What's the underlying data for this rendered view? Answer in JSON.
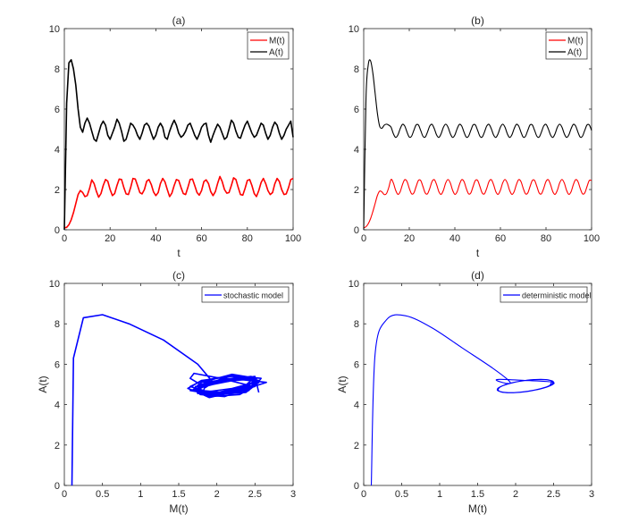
{
  "chart_data": [
    {
      "id": "a",
      "type": "line",
      "title": "(a)",
      "xlabel": "t",
      "ylabel": "",
      "xlim": [
        0,
        100
      ],
      "ylim": [
        0,
        10
      ],
      "xticks": [
        0,
        20,
        40,
        60,
        80,
        100
      ],
      "yticks": [
        0,
        2,
        4,
        6,
        8,
        10
      ],
      "legend": "top-right",
      "x_step": 1,
      "series": [
        {
          "name": "M(t)",
          "color": "#ff0000",
          "values": [
            0.1,
            0.12,
            0.25,
            0.5,
            0.85,
            1.3,
            1.75,
            1.95,
            1.85,
            1.65,
            1.7,
            2.05,
            2.48,
            2.3,
            1.92,
            1.62,
            1.8,
            2.2,
            2.5,
            2.42,
            2.0,
            1.7,
            1.8,
            2.2,
            2.52,
            2.5,
            2.1,
            1.78,
            1.75,
            2.1,
            2.55,
            2.52,
            2.2,
            1.85,
            1.78,
            2.0,
            2.42,
            2.5,
            2.25,
            1.88,
            1.7,
            1.85,
            2.3,
            2.55,
            2.38,
            2.0,
            1.65,
            1.82,
            2.2,
            2.5,
            2.45,
            2.1,
            1.8,
            1.75,
            2.1,
            2.5,
            2.52,
            2.2,
            1.85,
            1.72,
            1.95,
            2.4,
            2.48,
            2.3,
            1.9,
            1.7,
            1.9,
            2.3,
            2.65,
            2.4,
            2.0,
            1.82,
            1.85,
            2.2,
            2.58,
            2.5,
            2.1,
            1.75,
            1.72,
            2.05,
            2.45,
            2.5,
            2.2,
            1.8,
            1.65,
            1.95,
            2.35,
            2.55,
            2.3,
            1.95,
            1.75,
            1.85,
            2.28,
            2.55,
            2.4,
            2.0,
            1.75,
            1.78,
            2.1,
            2.5,
            2.55
          ]
        },
        {
          "name": "A(t)",
          "color": "#000000",
          "values": [
            0,
            6.3,
            8.3,
            8.45,
            8.0,
            7.2,
            6.0,
            5.1,
            4.85,
            5.3,
            5.55,
            5.3,
            4.9,
            4.5,
            4.4,
            4.8,
            5.2,
            5.4,
            5.2,
            4.7,
            4.5,
            4.8,
            5.1,
            5.5,
            5.3,
            4.9,
            4.4,
            4.5,
            4.9,
            5.3,
            5.2,
            5.0,
            4.7,
            4.5,
            4.8,
            5.2,
            5.3,
            5.15,
            4.8,
            4.5,
            4.7,
            5.1,
            5.3,
            5.1,
            4.6,
            4.5,
            4.9,
            5.2,
            5.45,
            5.2,
            4.8,
            4.6,
            4.7,
            4.9,
            5.2,
            5.3,
            5.0,
            4.7,
            4.5,
            4.75,
            5.1,
            5.25,
            5.3,
            4.7,
            4.35,
            4.7,
            5.0,
            5.25,
            5.1,
            4.8,
            4.5,
            4.6,
            5.0,
            5.45,
            5.3,
            4.9,
            4.6,
            4.55,
            4.9,
            5.2,
            5.4,
            5.1,
            4.8,
            4.6,
            4.7,
            5.0,
            5.3,
            5.2,
            4.8,
            4.5,
            4.7,
            5.1,
            5.35,
            5.2,
            4.8,
            4.5,
            4.7,
            5.0,
            5.2,
            5.4,
            4.6
          ]
        }
      ]
    },
    {
      "id": "b",
      "type": "line",
      "title": "(b)",
      "xlabel": "t",
      "ylabel": "",
      "xlim": [
        0,
        100
      ],
      "ylim": [
        0,
        10
      ],
      "xticks": [
        0,
        20,
        40,
        60,
        80,
        100
      ],
      "yticks": [
        0,
        2,
        4,
        6,
        8,
        10
      ],
      "legend": "top-right",
      "x_step": 1,
      "series": [
        {
          "name": "M(t)",
          "color": "#ff0000",
          "values": [
            0.1,
            0.15,
            0.3,
            0.55,
            0.9,
            1.3,
            1.7,
            1.92,
            1.88,
            1.75,
            1.8,
            2.1,
            2.5,
            2.33,
            1.97,
            1.76,
            1.89,
            2.24,
            2.49,
            2.4,
            2.06,
            1.79,
            1.83,
            2.15,
            2.45,
            2.45,
            2.15,
            1.83,
            1.79,
            2.06,
            2.4,
            2.49,
            2.24,
            1.89,
            1.76,
            1.97,
            2.33,
            2.5,
            2.33,
            1.97,
            1.76,
            1.89,
            2.24,
            2.49,
            2.4,
            2.06,
            1.79,
            1.83,
            2.15,
            2.45,
            2.45,
            2.15,
            1.83,
            1.79,
            2.06,
            2.4,
            2.49,
            2.24,
            1.89,
            1.76,
            1.97,
            2.33,
            2.5,
            2.33,
            1.97,
            1.76,
            1.89,
            2.24,
            2.49,
            2.4,
            2.06,
            1.79,
            1.83,
            2.15,
            2.45,
            2.45,
            2.15,
            1.83,
            1.79,
            2.06,
            2.4,
            2.49,
            2.24,
            1.89,
            1.76,
            1.97,
            2.33,
            2.5,
            2.33,
            1.97,
            1.76,
            1.89,
            2.24,
            2.49,
            2.4,
            2.06,
            1.79,
            1.83,
            2.15,
            2.45,
            2.45
          ]
        },
        {
          "name": "A(t)",
          "color": "#000000",
          "values": [
            0,
            6.5,
            8.2,
            8.4,
            7.8,
            6.8,
            5.8,
            5.15,
            5.05,
            5.2,
            5.25,
            5.2,
            5.1,
            4.78,
            4.59,
            4.71,
            5.02,
            5.24,
            5.16,
            4.86,
            4.61,
            4.65,
            4.94,
            5.21,
            5.21,
            4.94,
            4.65,
            4.61,
            4.86,
            5.16,
            5.24,
            5.02,
            4.71,
            4.59,
            4.78,
            5.1,
            5.25,
            5.1,
            4.78,
            4.59,
            4.71,
            5.02,
            5.24,
            5.16,
            4.86,
            4.61,
            4.65,
            4.94,
            5.21,
            5.21,
            4.94,
            4.65,
            4.61,
            4.86,
            5.16,
            5.24,
            5.02,
            4.71,
            4.59,
            4.78,
            5.1,
            5.25,
            5.1,
            4.78,
            4.59,
            4.71,
            5.02,
            5.24,
            5.16,
            4.86,
            4.61,
            4.65,
            4.94,
            5.21,
            5.21,
            4.94,
            4.65,
            4.61,
            4.86,
            5.16,
            5.24,
            5.02,
            4.71,
            4.59,
            4.78,
            5.1,
            5.25,
            5.1,
            4.78,
            4.59,
            4.71,
            5.02,
            5.24,
            5.16,
            4.86,
            4.61,
            4.65,
            4.94,
            5.21,
            5.21,
            4.94
          ]
        }
      ]
    },
    {
      "id": "c",
      "type": "line",
      "title": "(c)",
      "xlabel": "M(t)",
      "ylabel": "A(t)",
      "xlim": [
        0,
        3
      ],
      "ylim": [
        0,
        10
      ],
      "xticks": [
        0,
        0.5,
        1,
        1.5,
        2,
        2.5,
        3
      ],
      "yticks": [
        0,
        2,
        4,
        6,
        8,
        10
      ],
      "legend": "top-right",
      "series": [
        {
          "name": "stochastic model",
          "color": "#0000ff",
          "x_from": "a.M(t)",
          "y_from": "a.A(t)"
        }
      ]
    },
    {
      "id": "d",
      "type": "line",
      "title": "(d)",
      "xlabel": "M(t)",
      "ylabel": "A(t)",
      "xlim": [
        0,
        3
      ],
      "ylim": [
        0,
        10
      ],
      "xticks": [
        0,
        0.5,
        1,
        1.5,
        2,
        2.5,
        3
      ],
      "yticks": [
        0,
        2,
        4,
        6,
        8,
        10
      ],
      "legend": "top-right",
      "series": [
        {
          "name": "deterministic model",
          "color": "#0000ff",
          "x_from": "b.M(t)",
          "y_from": "b.A(t)"
        }
      ]
    }
  ]
}
